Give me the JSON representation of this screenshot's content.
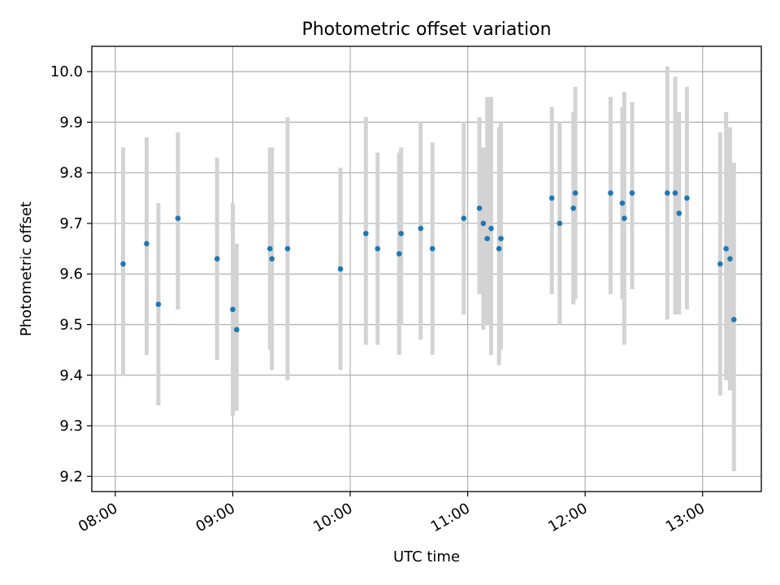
{
  "chart_data": {
    "type": "scatter",
    "title": "Photometric offset variation",
    "xlabel": "UTC time",
    "ylabel": "Photometric offset",
    "x_range_hours": [
      7.8,
      13.5
    ],
    "ylim": [
      9.17,
      10.05
    ],
    "x_ticks": [
      "08:00",
      "09:00",
      "10:00",
      "11:00",
      "12:00",
      "13:00"
    ],
    "y_ticks": [
      "9.2",
      "9.3",
      "9.4",
      "9.5",
      "9.6",
      "9.7",
      "9.8",
      "9.9",
      "10.0"
    ],
    "grid": true,
    "colors": {
      "point": "#1f77b4",
      "errorbar": "#d3d3d3",
      "grid": "#b0b0b0"
    },
    "series": [
      {
        "x": [
          "08:04",
          "08:16",
          "08:22",
          "08:32",
          "08:52",
          "09:00",
          "09:02",
          "09:19",
          "09:20",
          "09:28",
          "09:55",
          "10:08",
          "10:14",
          "10:25",
          "10:26",
          "10:36",
          "10:42",
          "10:58",
          "11:06",
          "11:08",
          "11:10",
          "11:12",
          "11:16",
          "11:17",
          "11:43",
          "11:47",
          "11:54",
          "11:55",
          "12:13",
          "12:19",
          "12:20",
          "12:24",
          "12:42",
          "12:46",
          "12:48",
          "12:52",
          "13:09",
          "13:12",
          "13:14",
          "13:16"
        ],
        "y": [
          9.62,
          9.66,
          9.54,
          9.71,
          9.63,
          9.53,
          9.49,
          9.65,
          9.63,
          9.65,
          9.61,
          9.68,
          9.65,
          9.64,
          9.68,
          9.69,
          9.65,
          9.71,
          9.73,
          9.7,
          9.67,
          9.69,
          9.65,
          9.67,
          9.75,
          9.7,
          9.73,
          9.76,
          9.76,
          9.74,
          9.71,
          9.76,
          9.76,
          9.76,
          9.72,
          9.75,
          9.62,
          9.65,
          9.63,
          9.51
        ],
        "yerr_low": [
          9.4,
          9.44,
          9.34,
          9.53,
          9.43,
          9.32,
          9.33,
          9.45,
          9.41,
          9.39,
          9.41,
          9.46,
          9.46,
          9.44,
          9.5,
          9.47,
          9.44,
          9.52,
          9.56,
          9.49,
          9.5,
          9.44,
          9.42,
          9.45,
          9.56,
          9.5,
          9.54,
          9.55,
          9.56,
          9.55,
          9.46,
          9.57,
          9.51,
          9.52,
          9.52,
          9.53,
          9.36,
          9.39,
          9.37,
          9.21
        ],
        "yerr_high": [
          9.85,
          9.87,
          9.74,
          9.88,
          9.83,
          9.74,
          9.66,
          9.85,
          9.85,
          9.91,
          9.81,
          9.91,
          9.84,
          9.84,
          9.85,
          9.9,
          9.86,
          9.9,
          9.91,
          9.85,
          9.95,
          9.95,
          9.89,
          9.9,
          9.93,
          9.9,
          9.92,
          9.97,
          9.95,
          9.93,
          9.96,
          9.94,
          10.01,
          9.99,
          9.92,
          9.97,
          9.88,
          9.92,
          9.89,
          9.82
        ]
      }
    ]
  }
}
